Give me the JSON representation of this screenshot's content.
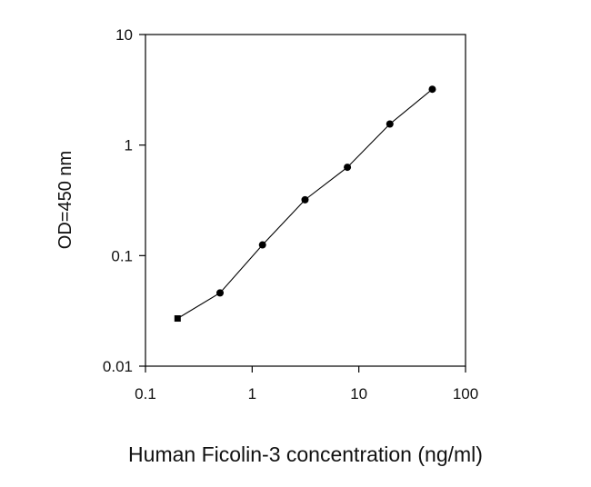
{
  "chart_data": {
    "type": "line",
    "title": "",
    "xlabel": "Human Ficolin-3 concentration (ng/ml)",
    "ylabel": "OD=450 nm",
    "x_scale": "log",
    "y_scale": "log",
    "xlim": [
      0.1,
      100
    ],
    "ylim": [
      0.01,
      10
    ],
    "x_ticks": [
      0.1,
      1,
      10,
      100
    ],
    "y_ticks": [
      0.01,
      0.1,
      1,
      10
    ],
    "x_tick_labels": [
      "0.1",
      "1",
      "10",
      "100"
    ],
    "y_tick_labels": [
      "0.01",
      "0.1",
      "1",
      "10"
    ],
    "grid": false,
    "legend": "none",
    "series": [
      {
        "x": [
          0.2,
          0.5,
          1.25,
          3.13,
          7.81,
          19.53,
          48.83
        ],
        "y": [
          0.027,
          0.046,
          0.125,
          0.32,
          0.63,
          1.55,
          3.2
        ],
        "color": "#000000",
        "marker": "circle"
      }
    ]
  }
}
